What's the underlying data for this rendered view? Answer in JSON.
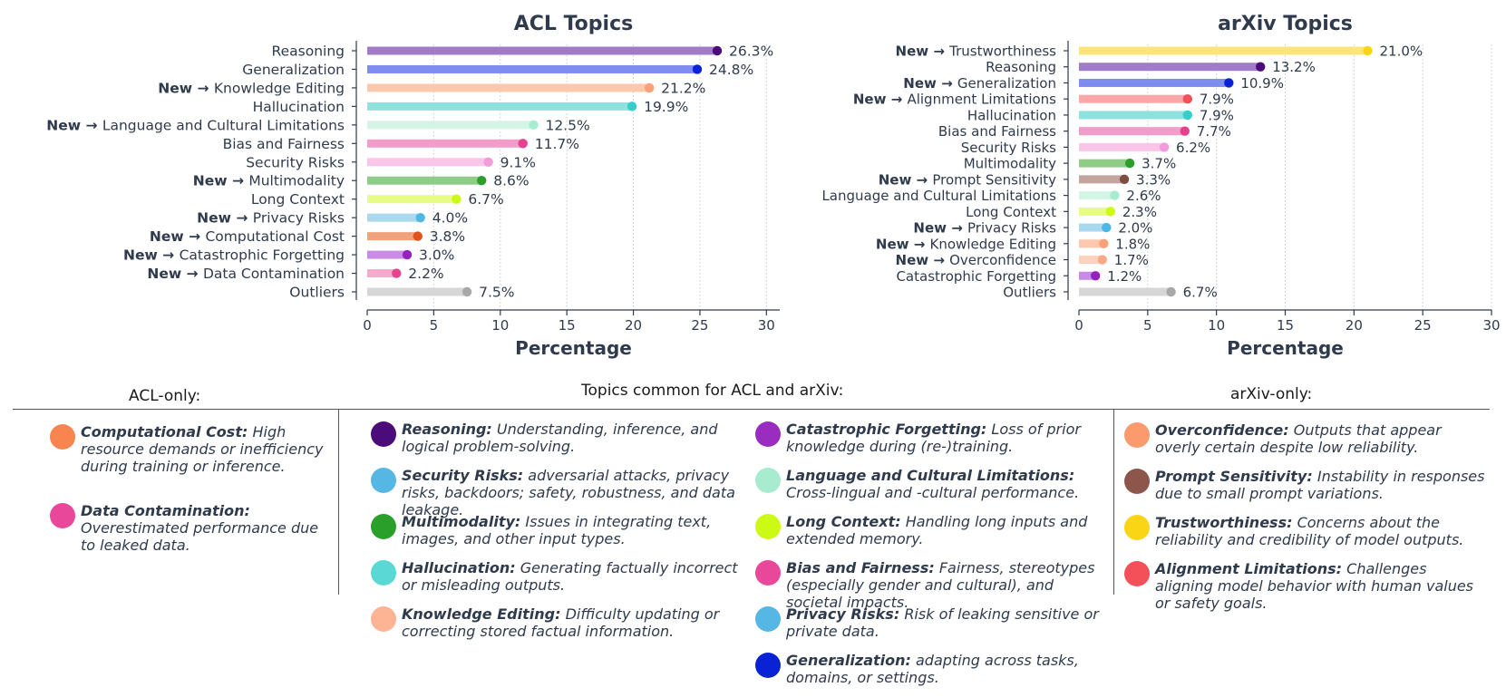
{
  "chart_data": [
    {
      "type": "bar",
      "orientation": "horizontal",
      "title": "ACL Topics",
      "xlabel": "Percentage",
      "ylabel": "",
      "xlim": [
        0,
        31
      ],
      "xticks": [
        0,
        5,
        10,
        15,
        20,
        25,
        30
      ],
      "grid": "vertical dotted",
      "new_label": "New",
      "categories": [
        {
          "label": "Reasoning",
          "new": false,
          "value": 26.3,
          "value_label": "26.3%",
          "bar_color": "#a07cc8",
          "dot_color": "#4b0b7a"
        },
        {
          "label": "Generalization",
          "new": false,
          "value": 24.8,
          "value_label": "24.8%",
          "bar_color": "#7f8cf0",
          "dot_color": "#0a22d6"
        },
        {
          "label": "Knowledge Editing",
          "new": true,
          "value": 21.2,
          "value_label": "21.2%",
          "bar_color": "#fcc8ad",
          "dot_color": "#fca07a"
        },
        {
          "label": "Hallucination",
          "new": false,
          "value": 19.9,
          "value_label": "19.9%",
          "bar_color": "#8de2de",
          "dot_color": "#36cfc8"
        },
        {
          "label": "Language and Cultural Limitations",
          "new": true,
          "value": 12.5,
          "value_label": "12.5%",
          "bar_color": "#d4f5e6",
          "dot_color": "#a8ecd0"
        },
        {
          "label": "Bias and Fairness",
          "new": false,
          "value": 11.7,
          "value_label": "11.7%",
          "bar_color": "#f29cc9",
          "dot_color": "#e83f8f"
        },
        {
          "label": "Security Risks",
          "new": false,
          "value": 9.1,
          "value_label": "9.1%",
          "bar_color": "#f9c6ea",
          "dot_color": "#f29cde"
        },
        {
          "label": "Multimodality",
          "new": true,
          "value": 8.6,
          "value_label": "8.6%",
          "bar_color": "#8fcc88",
          "dot_color": "#2aa02b"
        },
        {
          "label": "Long Context",
          "new": false,
          "value": 6.7,
          "value_label": "6.7%",
          "bar_color": "#e6fc84",
          "dot_color": "#cdfa14"
        },
        {
          "label": "Privacy Risks",
          "new": true,
          "value": 4.0,
          "value_label": "4.0%",
          "bar_color": "#a9d8ef",
          "dot_color": "#4eb7e6"
        },
        {
          "label": "Computational Cost",
          "new": true,
          "value": 3.8,
          "value_label": "3.8%",
          "bar_color": "#f0a27c",
          "dot_color": "#e0531c"
        },
        {
          "label": "Catastrophic Forgetting",
          "new": true,
          "value": 3.0,
          "value_label": "3.0%",
          "bar_color": "#c98be6",
          "dot_color": "#9422bf"
        },
        {
          "label": "Data Contamination",
          "new": true,
          "value": 2.2,
          "value_label": "2.2%",
          "bar_color": "#f7a8cd",
          "dot_color": "#e8438f"
        },
        {
          "label": "Outliers",
          "new": false,
          "value": 7.5,
          "value_label": "7.5%",
          "bar_color": "#d6d6d6",
          "dot_color": "#a8a8a8"
        }
      ]
    },
    {
      "type": "bar",
      "orientation": "horizontal",
      "title": "arXiv Topics",
      "xlabel": "Percentage",
      "ylabel": "",
      "xlim": [
        0,
        30
      ],
      "xticks": [
        0,
        5,
        10,
        15,
        20,
        25,
        30
      ],
      "grid": "vertical dotted",
      "new_label": "New",
      "categories": [
        {
          "label": "Trustworthiness",
          "new": true,
          "value": 21.0,
          "value_label": "21.0%",
          "bar_color": "#fbe57a",
          "dot_color": "#fad515"
        },
        {
          "label": "Reasoning",
          "new": false,
          "value": 13.2,
          "value_label": "13.2%",
          "bar_color": "#a07cc8",
          "dot_color": "#4b0b7a"
        },
        {
          "label": "Generalization",
          "new": true,
          "value": 10.9,
          "value_label": "10.9%",
          "bar_color": "#7f8cf0",
          "dot_color": "#0a22d6"
        },
        {
          "label": "Alignment Limitations",
          "new": true,
          "value": 7.9,
          "value_label": "7.9%",
          "bar_color": "#fba7a7",
          "dot_color": "#f4505a"
        },
        {
          "label": "Hallucination",
          "new": false,
          "value": 7.9,
          "value_label": "7.9%",
          "bar_color": "#8de2de",
          "dot_color": "#36cfc8"
        },
        {
          "label": "Bias and Fairness",
          "new": false,
          "value": 7.7,
          "value_label": "7.7%",
          "bar_color": "#f29cc9",
          "dot_color": "#e83f8f"
        },
        {
          "label": "Security Risks",
          "new": false,
          "value": 6.2,
          "value_label": "6.2%",
          "bar_color": "#f9c6ea",
          "dot_color": "#f29cde"
        },
        {
          "label": "Multimodality",
          "new": false,
          "value": 3.7,
          "value_label": "3.7%",
          "bar_color": "#8fcc88",
          "dot_color": "#2aa02b"
        },
        {
          "label": "Prompt Sensitivity",
          "new": true,
          "value": 3.3,
          "value_label": "3.3%",
          "bar_color": "#c4a49f",
          "dot_color": "#7d4d45"
        },
        {
          "label": "Language and Cultural Limitations",
          "new": false,
          "value": 2.6,
          "value_label": "2.6%",
          "bar_color": "#d4f5e6",
          "dot_color": "#a8ecd0"
        },
        {
          "label": "Long Context",
          "new": false,
          "value": 2.3,
          "value_label": "2.3%",
          "bar_color": "#e6fc84",
          "dot_color": "#cdfa14"
        },
        {
          "label": "Privacy Risks",
          "new": true,
          "value": 2.0,
          "value_label": "2.0%",
          "bar_color": "#a9d8ef",
          "dot_color": "#4eb7e6"
        },
        {
          "label": "Knowledge Editing",
          "new": true,
          "value": 1.8,
          "value_label": "1.8%",
          "bar_color": "#fcc8ad",
          "dot_color": "#fca07a"
        },
        {
          "label": "Overconfidence",
          "new": true,
          "value": 1.7,
          "value_label": "1.7%",
          "bar_color": "#fcd2bf",
          "dot_color": "#fba888"
        },
        {
          "label": "Catastrophic Forgetting",
          "new": false,
          "value": 1.2,
          "value_label": "1.2%",
          "bar_color": "#c98be6",
          "dot_color": "#9422bf"
        },
        {
          "label": "Outliers",
          "new": false,
          "value": 6.7,
          "value_label": "6.7%",
          "bar_color": "#d6d6d6",
          "dot_color": "#a8a8a8"
        }
      ]
    }
  ],
  "legend": {
    "acl_only_heading": "ACL-only:",
    "common_heading": "Topics common for ACL and arXiv:",
    "arxiv_only_heading": "arXiv-only:",
    "acl_only": [
      {
        "name": "Computational Cost:",
        "desc": "High resource demands or inefficiency during training or inference.",
        "color": "#f8844f"
      },
      {
        "name": "Data Contamination:",
        "desc": "Overestimated performance due to leaked data.",
        "color": "#e8479a"
      }
    ],
    "common_col1": [
      {
        "name": "Reasoning:",
        "desc": "Understanding, inference, and logical problem-solving.",
        "color": "#4b0b7a"
      },
      {
        "name": "Security Risks:",
        "desc": "adversarial attacks, privacy risks, backdoors; safety, robustness, and data leakage.",
        "color": "#56b7e4"
      },
      {
        "name": "Multimodality:",
        "desc": "Issues in integrating text, images, and other input types.",
        "color": "#2aa02b"
      },
      {
        "name": "Hallucination:",
        "desc": "Generating factually incorrect or misleading outputs.",
        "color": "#5ad9d4"
      },
      {
        "name": "Knowledge Editing:",
        "desc": "Difficulty updating or correcting stored factual information.",
        "color": "#fcb494"
      }
    ],
    "common_col2": [
      {
        "name": "Catastrophic Forgetting:",
        "desc": "Loss of prior knowledge during (re-)training.",
        "color": "#9a2dbf"
      },
      {
        "name": "Language and Cultural Limitations:",
        "desc": "Cross-lingual and -cultural performance.",
        "color": "#a8ecd0"
      },
      {
        "name": "Long Context:",
        "desc": "Handling long inputs and extended memory.",
        "color": "#cdfa14"
      },
      {
        "name": "Bias and Fairness:",
        "desc": "Fairness, stereotypes (especially gender and cultural), and societal impacts.",
        "color": "#e8479a"
      },
      {
        "name": "Privacy Risks:",
        "desc": "Risk of leaking sensitive or private data.",
        "color": "#56b7e4"
      },
      {
        "name": "Generalization:",
        "desc": "adapting across tasks, domains, or settings.",
        "color": "#0a22d6"
      }
    ],
    "arxiv_only": [
      {
        "name": "Overconfidence:",
        "desc": "Outputs that appear overly certain despite low reliability.",
        "color": "#fb9a6c"
      },
      {
        "name": "Prompt Sensitivity:",
        "desc": "Instability in responses due to small prompt variations.",
        "color": "#8c564b"
      },
      {
        "name": "Trustworthiness:",
        "desc": "Concerns about the reliability and credibility of model outputs.",
        "color": "#fad515"
      },
      {
        "name": "Alignment Limitations:",
        "desc": "Challenges aligning model behavior with human values or safety goals.",
        "color": "#f4505a"
      }
    ]
  }
}
